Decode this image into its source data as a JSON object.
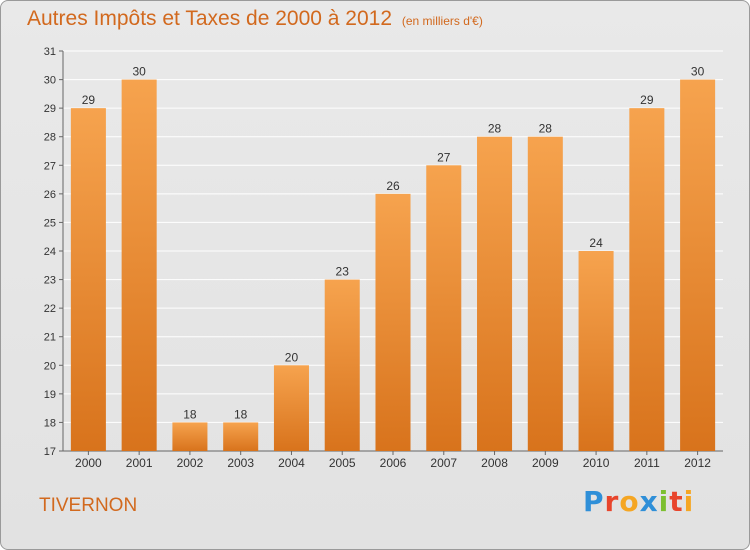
{
  "title": {
    "main": "Autres Impôts et Taxes de 2000 à 2012",
    "unit": "(en milliers d'€)"
  },
  "commune": "TIVERNON",
  "logo": {
    "text": "Proxiti",
    "letters": [
      {
        "char": "P",
        "color": "#2f8fd8"
      },
      {
        "char": "r",
        "color": "#e8452c"
      },
      {
        "char": "o",
        "color": "#f5a623"
      },
      {
        "char": "x",
        "color": "#2f8fd8"
      },
      {
        "char": "i",
        "color": "#7cbf2f"
      },
      {
        "char": "t",
        "color": "#e8452c"
      },
      {
        "char": "i",
        "color": "#f5a623"
      }
    ]
  },
  "colors": {
    "bar_top": "#f6a34e",
    "bar_bottom": "#d8731c",
    "title": "#d2691e",
    "grid": "#ffffff"
  },
  "chart_data": {
    "type": "bar",
    "title": "Autres Impôts et Taxes de 2000 à 2012",
    "subtitle": "(en milliers d'€)",
    "categories": [
      "2000",
      "2001",
      "2002",
      "2003",
      "2004",
      "2005",
      "2006",
      "2007",
      "2008",
      "2009",
      "2010",
      "2011",
      "2012"
    ],
    "values": [
      29,
      30,
      18,
      18,
      20,
      23,
      26,
      27,
      28,
      28,
      24,
      29,
      30
    ],
    "ylim": [
      17,
      31
    ],
    "yticks": [
      17,
      18,
      19,
      20,
      21,
      22,
      23,
      24,
      25,
      26,
      27,
      28,
      29,
      30,
      31
    ],
    "grid": true,
    "data_labels": true
  }
}
